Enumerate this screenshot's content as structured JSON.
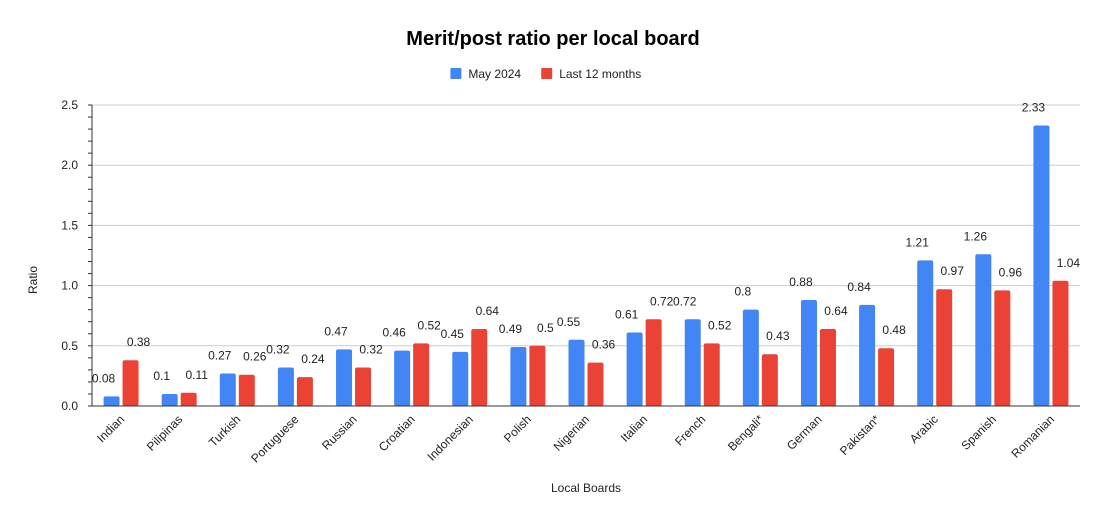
{
  "chart_data": {
    "type": "bar",
    "title": "Merit/post ratio per local board",
    "xlabel": "Local Boards",
    "ylabel": "Ratio",
    "ylim": [
      0,
      2.5
    ],
    "yticks": [
      "0.0",
      "0.5",
      "1.0",
      "1.5",
      "2.0",
      "2.5"
    ],
    "grid": true,
    "legend_position": "top",
    "categories": [
      "Indian",
      "Pilipinas",
      "Turkish",
      "Portuguese",
      "Russian",
      "Croatian",
      "Indonesian",
      "Polish",
      "Nigerian",
      "Italian",
      "French",
      "Bengali*",
      "German",
      "Pakistan*",
      "Arabic",
      "Spanish",
      "Romanian"
    ],
    "series": [
      {
        "name": "May 2024",
        "color": "#4285f4",
        "values": [
          0.08,
          0.1,
          0.27,
          0.32,
          0.47,
          0.46,
          0.45,
          0.49,
          0.55,
          0.61,
          0.72,
          0.8,
          0.88,
          0.84,
          1.21,
          1.26,
          2.33
        ],
        "labels": [
          "0.08",
          "0.1",
          "0.27",
          "0.32",
          "0.47",
          "0.46",
          "0.45",
          "0.49",
          "0.55",
          "0.61",
          "0.72",
          "0.8",
          "0.88",
          "0.84",
          "1.21",
          "1.26",
          "2.33"
        ]
      },
      {
        "name": "Last 12 months",
        "color": "#ea4335",
        "values": [
          0.38,
          0.11,
          0.26,
          0.24,
          0.32,
          0.52,
          0.64,
          0.5,
          0.36,
          0.72,
          0.52,
          0.43,
          0.64,
          0.48,
          0.97,
          0.96,
          1.04
        ],
        "labels": [
          "0.38",
          "0.11",
          "0.26",
          "0.24",
          "0.32",
          "0.52",
          "0.64",
          "0.5",
          "0.36",
          "0.72",
          "0.52",
          "0.43",
          "0.64",
          "0.48",
          "0.97",
          "0.96",
          "1.04"
        ]
      }
    ]
  }
}
